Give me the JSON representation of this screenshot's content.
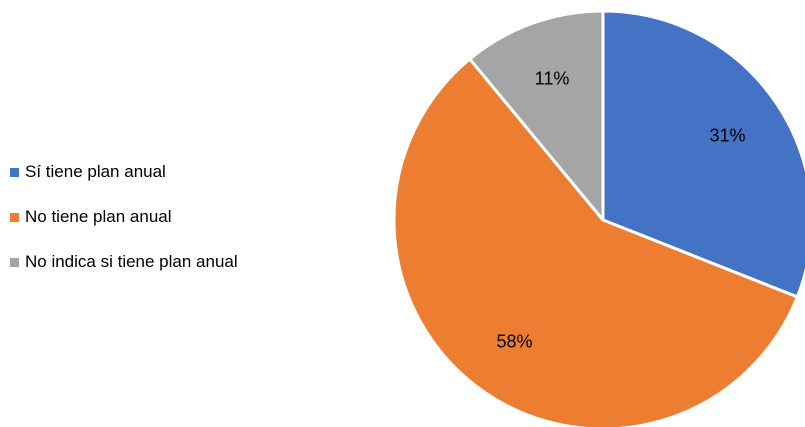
{
  "chart_data": {
    "type": "pie",
    "title": "",
    "legend_position": "left",
    "series": [
      {
        "name": "Sí tiene plan anual",
        "value": 31,
        "label": "31%",
        "color": "#4472C4"
      },
      {
        "name": "No tiene plan anual",
        "value": 58,
        "label": "58%",
        "color": "#ED7D31"
      },
      {
        "name": "No indica si tiene plan anual",
        "value": 11,
        "label": "11%",
        "color": "#A5A5A5"
      }
    ]
  }
}
